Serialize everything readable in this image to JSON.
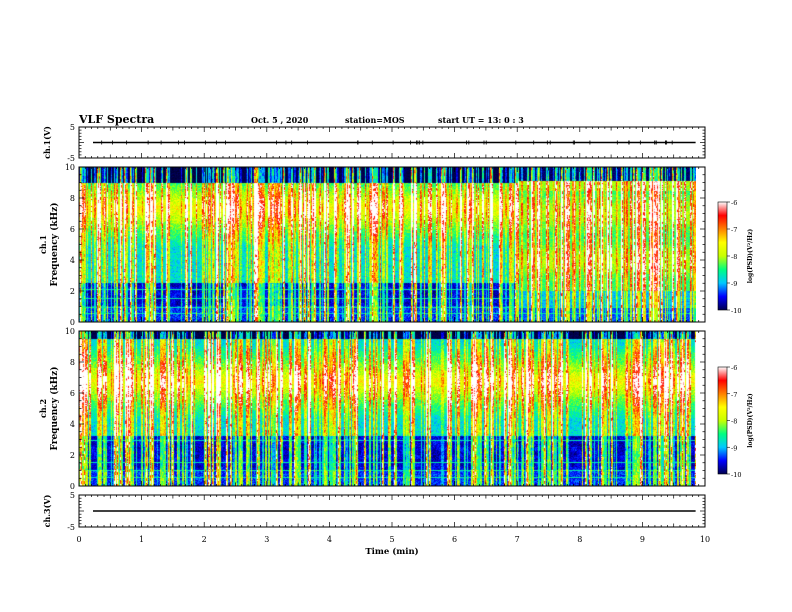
{
  "header": {
    "title": "VLF Spectra",
    "date": "Oct. 5 , 2020",
    "station": "station=MOS",
    "start_ut": "start UT = 13: 0 : 3"
  },
  "chart_data": {
    "type": "heatmap",
    "x_axis": {
      "label": "Time (min)",
      "range": [
        0,
        10
      ],
      "ticks": [
        "0",
        "1",
        "2",
        "3",
        "4",
        "5",
        "6",
        "7",
        "8",
        "9",
        "10"
      ]
    },
    "panels": [
      {
        "name": "ch.1(V)",
        "kind": "waveform",
        "ylim": [
          -5,
          5
        ],
        "yticks": [
          "5",
          "-5"
        ],
        "level": 0
      },
      {
        "name": "ch.1",
        "kind": "spectrogram",
        "ylabel": "Frequency (kHz)",
        "ylim": [
          0,
          10
        ],
        "yticks": [
          "0",
          "2",
          "4",
          "6",
          "8",
          "10"
        ],
        "main_band_khz": [
          2.5,
          9
        ],
        "strong_band_khz": [
          6,
          8.7
        ],
        "change_time_min": 7.0,
        "after_change_low_khz": 2.0,
        "hum_lines_khz": [
          0.5,
          0.9,
          1.5,
          2.1,
          2.8,
          3.1,
          4.4,
          6.2,
          7.0,
          8.0,
          8.6
        ]
      },
      {
        "name": "ch.2",
        "kind": "spectrogram",
        "ylabel": "Frequency (kHz)",
        "ylim": [
          0,
          10
        ],
        "yticks": [
          "0",
          "2",
          "4",
          "6",
          "8",
          "10"
        ],
        "main_band_khz": [
          3.2,
          9.5
        ],
        "strong_band_khz": [
          5.5,
          8
        ],
        "hum_lines_khz": [
          0.5,
          1.0,
          1.5,
          2.9,
          3.4,
          4.6,
          5.9
        ]
      },
      {
        "name": "ch.3(V)",
        "kind": "waveform",
        "ylim": [
          -5,
          5
        ],
        "yticks": [
          "5",
          "-5"
        ],
        "level": 0
      }
    ],
    "colorbars": [
      {
        "label": "log(PSD)(V²/Hz)",
        "range": [
          -10,
          -6
        ],
        "ticks": [
          "-6",
          "-7",
          "-8",
          "-9",
          "-10"
        ],
        "colors": [
          "#000050",
          "#0000ff",
          "#00c8ff",
          "#00ff80",
          "#c8ff00",
          "#ffff00",
          "#ff8000",
          "#ff0000",
          "#ffffff"
        ]
      },
      {
        "label": "log(PSD)(V²/Hz)",
        "range": [
          -10,
          -6
        ],
        "ticks": [
          "-6",
          "-7",
          "-8",
          "-9",
          "-10"
        ],
        "colors": [
          "#000050",
          "#0000ff",
          "#00c8ff",
          "#00ff80",
          "#c8ff00",
          "#ffff00",
          "#ff8000",
          "#ff0000",
          "#ffffff"
        ]
      }
    ]
  }
}
